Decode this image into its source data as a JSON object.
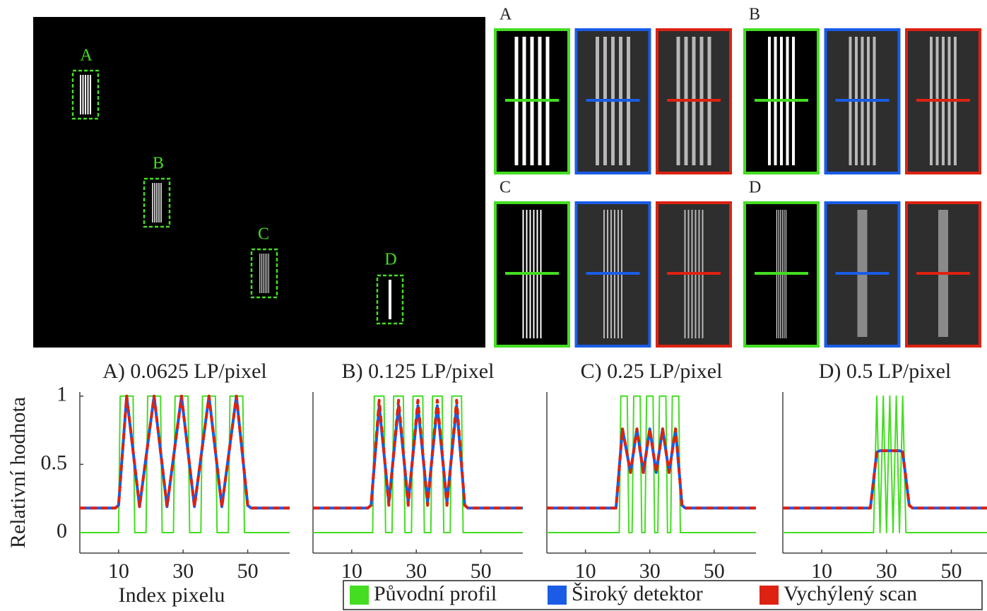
{
  "overview_labels": [
    "A",
    "B",
    "C",
    "D"
  ],
  "panel_labels": [
    "A",
    "B",
    "C",
    "D"
  ],
  "chart_data": [
    {
      "type": "line",
      "title": "A) 0.0625 LP/pixel",
      "y_label": "Relativní hodnota",
      "x_label": "Index pixelu",
      "xlim": [
        -2,
        63
      ],
      "xticks": [
        10,
        30,
        50
      ],
      "ylim": [
        -0.15,
        1.03
      ],
      "yticks": [
        0,
        0.5,
        1
      ],
      "series": [
        {
          "name": "Původní profil",
          "color": "#44dd22",
          "style": "solid",
          "x": [
            -2,
            10,
            10.5,
            14.5,
            15,
            18.5,
            19,
            23,
            23.5,
            27,
            27.5,
            31.5,
            32,
            35.5,
            36,
            40,
            40.5,
            44,
            44.5,
            48.5,
            49,
            63
          ],
          "values": [
            0,
            0,
            1,
            1,
            0,
            0,
            1,
            1,
            0,
            0,
            1,
            1,
            0,
            0,
            1,
            1,
            0,
            0,
            1,
            1,
            0,
            0
          ]
        },
        {
          "name": "Široký detektor",
          "color": "#1a5ce6",
          "style": "solid",
          "x": [
            -2,
            9,
            10,
            12.5,
            16.5,
            21,
            25,
            29.5,
            33.5,
            38,
            42,
            46.5,
            50,
            51,
            63
          ],
          "values": [
            0.18,
            0.18,
            0.2,
            1,
            0.19,
            1,
            0.19,
            1,
            0.19,
            1,
            0.19,
            1,
            0.2,
            0.18,
            0.18
          ]
        },
        {
          "name": "Vychýlený scan",
          "color": "#dd2211",
          "style": "dashed",
          "x": [
            -2,
            9,
            10,
            12.5,
            16.5,
            21,
            25,
            29.5,
            33.5,
            38,
            42,
            46.5,
            50,
            51,
            63
          ],
          "values": [
            0.18,
            0.18,
            0.2,
            1,
            0.19,
            1,
            0.19,
            1,
            0.19,
            1,
            0.19,
            1,
            0.2,
            0.18,
            0.18
          ]
        }
      ]
    },
    {
      "type": "line",
      "title": "B) 0.125 LP/pixel",
      "xlim": [
        -2,
        63
      ],
      "xticks": [
        10,
        30,
        50
      ],
      "ylim": [
        -0.15,
        1.03
      ],
      "series": [
        {
          "color": "#44dd22",
          "style": "solid",
          "x": [
            -2,
            16.5,
            17,
            20,
            20.5,
            22.5,
            23,
            26,
            26.5,
            28.5,
            29,
            32,
            32.5,
            34.5,
            35,
            38,
            38.5,
            40.5,
            41,
            44,
            44.5,
            63
          ],
          "values": [
            0,
            0,
            1,
            1,
            0,
            0,
            1,
            1,
            0,
            0,
            1,
            1,
            0,
            0,
            1,
            1,
            0,
            0,
            1,
            1,
            0,
            0
          ]
        },
        {
          "color": "#1a5ce6",
          "style": "solid",
          "x": [
            -2,
            15,
            16,
            18.5,
            21.5,
            24.5,
            27.5,
            30.5,
            33.5,
            36.5,
            39.5,
            42.5,
            45,
            46,
            63
          ],
          "values": [
            0.18,
            0.18,
            0.2,
            0.93,
            0.22,
            0.93,
            0.22,
            0.93,
            0.22,
            0.93,
            0.22,
            0.93,
            0.2,
            0.18,
            0.18
          ]
        },
        {
          "color": "#dd2211",
          "style": "dashed",
          "x": [
            -2,
            15,
            16,
            18.5,
            21.5,
            24.5,
            27.5,
            30.5,
            33.5,
            36.5,
            39.5,
            42.5,
            45,
            46,
            63
          ],
          "values": [
            0.18,
            0.18,
            0.2,
            0.97,
            0.2,
            0.97,
            0.2,
            0.97,
            0.2,
            0.97,
            0.2,
            0.97,
            0.2,
            0.18,
            0.18
          ]
        }
      ]
    },
    {
      "type": "line",
      "title": "C) 0.25 LP/pixel",
      "xlim": [
        -2,
        63
      ],
      "xticks": [
        10,
        30,
        50
      ],
      "ylim": [
        -0.15,
        1.03
      ],
      "series": [
        {
          "color": "#44dd22",
          "style": "solid",
          "x": [
            -2,
            20.5,
            21,
            23,
            23.5,
            24.5,
            25,
            27,
            27.5,
            28.5,
            29,
            31,
            31.5,
            32.5,
            33,
            35,
            35.5,
            36.5,
            37,
            39,
            39.5,
            63
          ],
          "values": [
            0,
            0,
            1,
            1,
            0,
            0,
            1,
            1,
            0,
            0,
            1,
            1,
            0,
            0,
            1,
            1,
            0,
            0,
            1,
            1,
            0,
            0
          ]
        },
        {
          "color": "#1a5ce6",
          "style": "solid",
          "x": [
            -2,
            19.5,
            21.5,
            24,
            26,
            28,
            30,
            32,
            34,
            36,
            38,
            40,
            41,
            63
          ],
          "values": [
            0.18,
            0.18,
            0.76,
            0.44,
            0.76,
            0.44,
            0.76,
            0.44,
            0.76,
            0.44,
            0.76,
            0.2,
            0.18,
            0.18
          ]
        },
        {
          "color": "#dd2211",
          "style": "dashed",
          "x": [
            -2,
            19.5,
            21.5,
            24,
            26,
            28,
            30,
            32,
            34,
            36,
            38,
            40,
            41,
            63
          ],
          "values": [
            0.18,
            0.18,
            0.76,
            0.44,
            0.76,
            0.44,
            0.76,
            0.44,
            0.76,
            0.44,
            0.76,
            0.2,
            0.18,
            0.18
          ]
        }
      ]
    },
    {
      "type": "line",
      "title": "D) 0.5 LP/pixel",
      "xlim": [
        -2,
        61
      ],
      "xticks": [
        10,
        30,
        50
      ],
      "ylim": [
        -0.15,
        1.03
      ],
      "series": [
        {
          "color": "#44dd22",
          "style": "solid",
          "x": [
            -2,
            26,
            27,
            28,
            29,
            30,
            31,
            32,
            33,
            34,
            35,
            36,
            61
          ],
          "values": [
            0,
            0,
            1,
            0,
            1,
            0,
            1,
            0,
            1,
            0,
            1,
            0,
            0
          ]
        },
        {
          "color": "#1a5ce6",
          "style": "solid",
          "x": [
            -2,
            25,
            27,
            28,
            34,
            35,
            37,
            38,
            61
          ],
          "values": [
            0.18,
            0.18,
            0.59,
            0.6,
            0.6,
            0.59,
            0.2,
            0.18,
            0.18
          ]
        },
        {
          "color": "#dd2211",
          "style": "dashed",
          "x": [
            -2,
            25,
            27,
            28,
            34,
            35,
            37,
            38,
            61
          ],
          "values": [
            0.18,
            0.18,
            0.59,
            0.6,
            0.6,
            0.59,
            0.2,
            0.18,
            0.18
          ]
        }
      ]
    }
  ]
}
